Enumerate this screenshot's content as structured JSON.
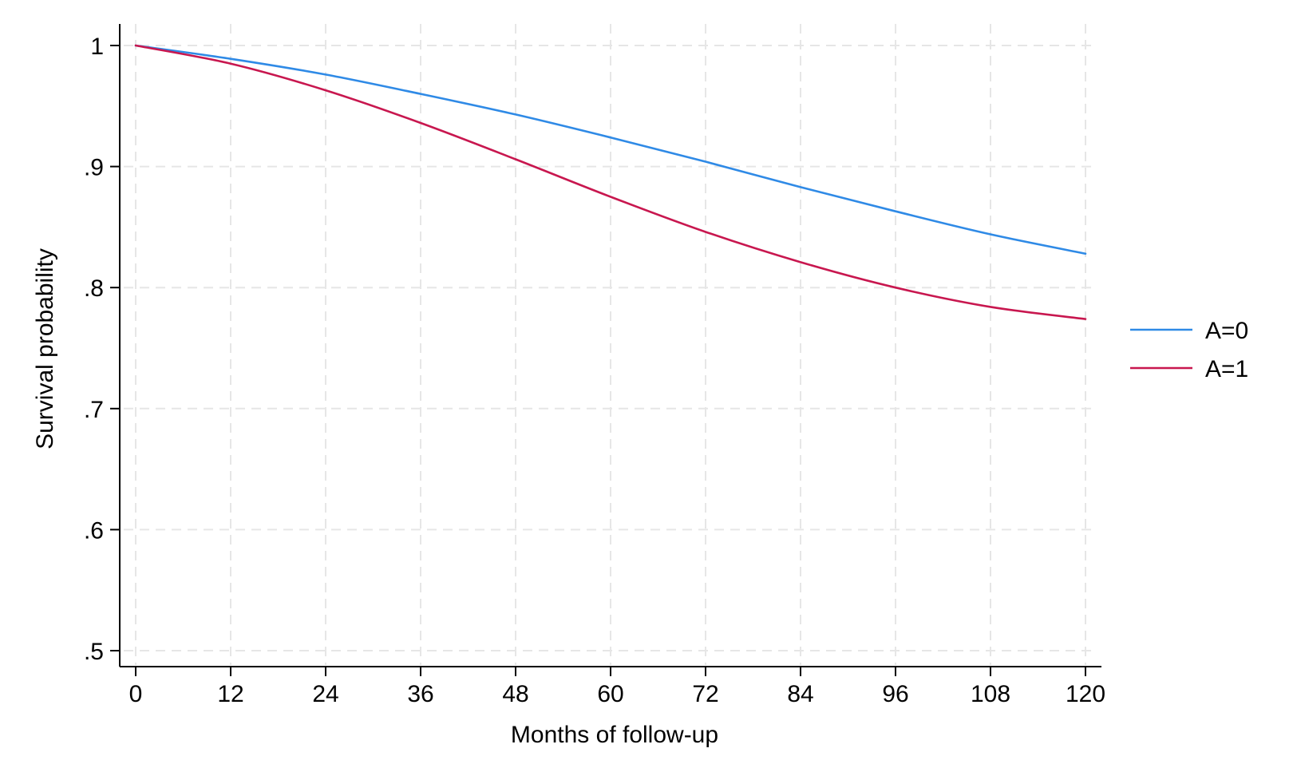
{
  "chart_data": {
    "type": "line",
    "title": "",
    "xlabel": "Months of follow-up",
    "ylabel": "Survival probability",
    "xlim": [
      0,
      120
    ],
    "ylim": [
      0.5,
      1
    ],
    "x_ticks": [
      0,
      12,
      24,
      36,
      48,
      60,
      72,
      84,
      96,
      108,
      120
    ],
    "x_tick_labels": [
      "0",
      "12",
      "24",
      "36",
      "48",
      "60",
      "72",
      "84",
      "96",
      "108",
      "120"
    ],
    "y_ticks": [
      0.5,
      0.6,
      0.7,
      0.8,
      0.9,
      1
    ],
    "y_tick_labels": [
      ".5",
      ".6",
      ".7",
      ".8",
      ".9",
      "1"
    ],
    "grid": true,
    "legend_position": "right",
    "x": [
      0,
      12,
      24,
      36,
      48,
      60,
      72,
      84,
      96,
      108,
      120
    ],
    "series": [
      {
        "name": "A=0",
        "color": "#2f8ae6",
        "values": [
          1.0,
          0.989,
          0.976,
          0.96,
          0.943,
          0.924,
          0.904,
          0.883,
          0.863,
          0.844,
          0.828
        ]
      },
      {
        "name": "A=1",
        "color": "#c8174f",
        "values": [
          1.0,
          0.985,
          0.963,
          0.936,
          0.906,
          0.875,
          0.846,
          0.821,
          0.8,
          0.784,
          0.774
        ]
      }
    ]
  }
}
